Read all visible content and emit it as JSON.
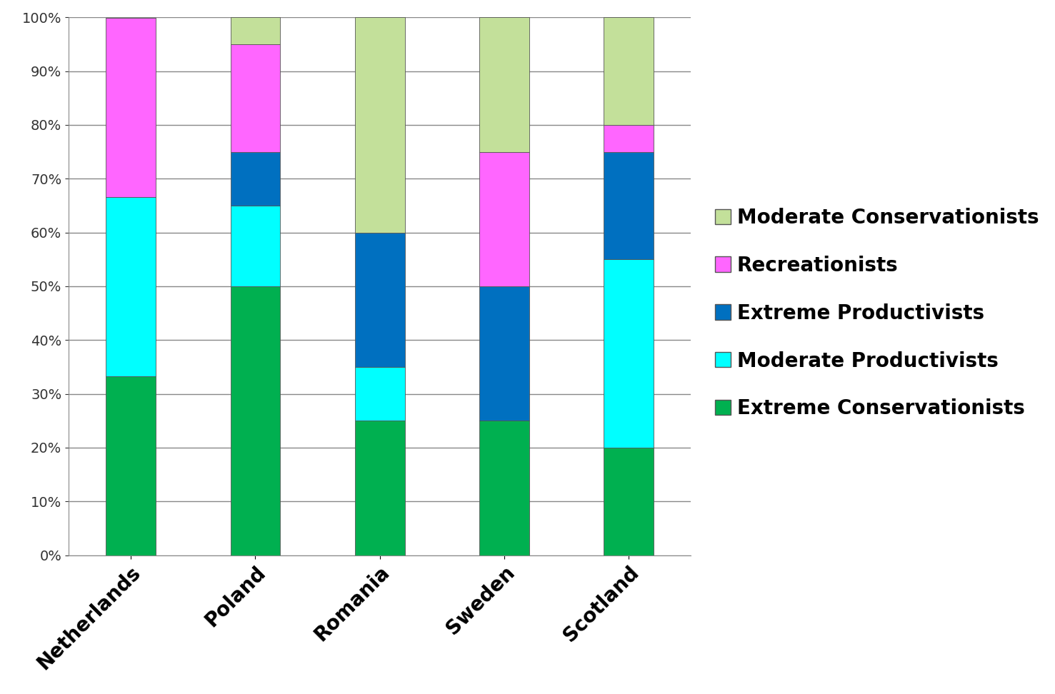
{
  "chart_data": {
    "type": "bar",
    "stacked": true,
    "grid": true,
    "legend": "right",
    "categories": [
      "Netherlands",
      "Poland",
      "Romania",
      "Sweden",
      "Scotland"
    ],
    "series": [
      {
        "name": "Extreme Conservationists",
        "color": "#00b050",
        "values": [
          33.3,
          50,
          25,
          25,
          20
        ]
      },
      {
        "name": "Moderate Productivists",
        "color": "#00ffff",
        "values": [
          33.3,
          15,
          10,
          0,
          35
        ]
      },
      {
        "name": "Extreme Productivists",
        "color": "#0070c0",
        "values": [
          0,
          10,
          25,
          25,
          20
        ]
      },
      {
        "name": "Recreationists",
        "color": "#ff66ff",
        "values": [
          33.3,
          20,
          0,
          25,
          5
        ]
      },
      {
        "name": "Moderate Conservationists",
        "color": "#c3e09a",
        "values": [
          0,
          5,
          40,
          25,
          20
        ]
      }
    ],
    "ylim": [
      0,
      100
    ],
    "yticks": [
      {
        "value": 0,
        "label": "0%"
      },
      {
        "value": 10,
        "label": "10%"
      },
      {
        "value": 20,
        "label": "20%"
      },
      {
        "value": 30,
        "label": "30%"
      },
      {
        "value": 40,
        "label": "40%"
      },
      {
        "value": 50,
        "label": "50%"
      },
      {
        "value": 60,
        "label": "60%"
      },
      {
        "value": 70,
        "label": "70%"
      },
      {
        "value": 80,
        "label": "80%"
      },
      {
        "value": 90,
        "label": "90%"
      },
      {
        "value": 100,
        "label": "100%"
      }
    ]
  }
}
